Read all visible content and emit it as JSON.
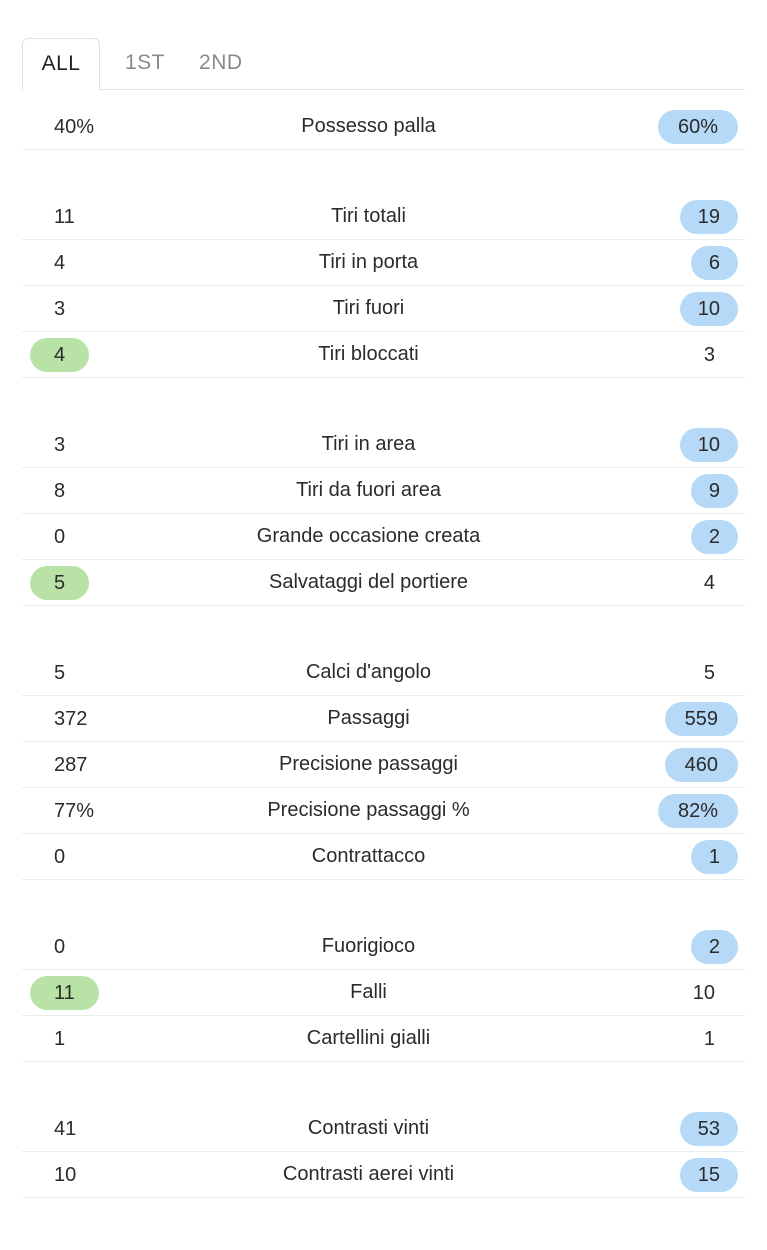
{
  "tabs": [
    "ALL",
    "1ST",
    "2ND"
  ],
  "active_tab": "ALL",
  "colors": {
    "home_highlight": "#b9e3a6",
    "away_highlight": "#b6d9f7"
  },
  "stats": [
    {
      "label": "Possesso palla",
      "home": "40%",
      "away": "60%",
      "leader": "away",
      "group": 1
    },
    {
      "label": "Tiri totali",
      "home": "11",
      "away": "19",
      "leader": "away",
      "group": 2
    },
    {
      "label": "Tiri in porta",
      "home": "4",
      "away": "6",
      "leader": "away",
      "group": 2
    },
    {
      "label": "Tiri fuori",
      "home": "3",
      "away": "10",
      "leader": "away",
      "group": 2
    },
    {
      "label": "Tiri bloccati",
      "home": "4",
      "away": "3",
      "leader": "home",
      "group": 2
    },
    {
      "label": "Tiri in area",
      "home": "3",
      "away": "10",
      "leader": "away",
      "group": 3
    },
    {
      "label": "Tiri da fuori area",
      "home": "8",
      "away": "9",
      "leader": "away",
      "group": 3
    },
    {
      "label": "Grande occasione creata",
      "home": "0",
      "away": "2",
      "leader": "away",
      "group": 3
    },
    {
      "label": "Salvataggi del portiere",
      "home": "5",
      "away": "4",
      "leader": "home",
      "group": 3
    },
    {
      "label": "Calci d'angolo",
      "home": "5",
      "away": "5",
      "leader": "none",
      "group": 4
    },
    {
      "label": "Passaggi",
      "home": "372",
      "away": "559",
      "leader": "away",
      "group": 4
    },
    {
      "label": "Precisione passaggi",
      "home": "287",
      "away": "460",
      "leader": "away",
      "group": 4
    },
    {
      "label": "Precisione passaggi %",
      "home": "77%",
      "away": "82%",
      "leader": "away",
      "group": 4
    },
    {
      "label": "Contrattacco",
      "home": "0",
      "away": "1",
      "leader": "away",
      "group": 4
    },
    {
      "label": "Fuorigioco",
      "home": "0",
      "away": "2",
      "leader": "away",
      "group": 5
    },
    {
      "label": "Falli",
      "home": "11",
      "away": "10",
      "leader": "home",
      "group": 5
    },
    {
      "label": "Cartellini gialli",
      "home": "1",
      "away": "1",
      "leader": "none",
      "group": 5
    },
    {
      "label": "Contrasti vinti",
      "home": "41",
      "away": "53",
      "leader": "away",
      "group": 6
    },
    {
      "label": "Contrasti aerei vinti",
      "home": "10",
      "away": "15",
      "leader": "away",
      "group": 6
    }
  ]
}
